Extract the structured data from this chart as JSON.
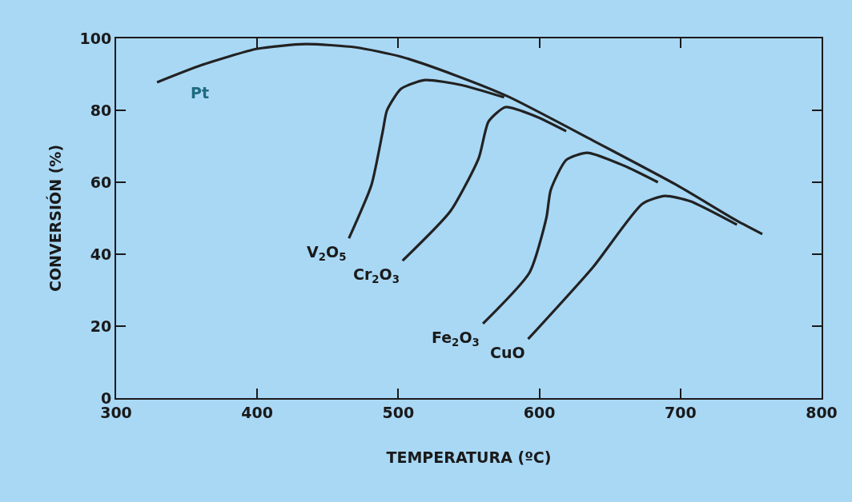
{
  "chart_data": {
    "type": "line",
    "xlabel": "TEMPERATURA (ºC)",
    "ylabel": "CONVERSIÓN (%)",
    "xlim": [
      300,
      800
    ],
    "xticks": [
      300,
      400,
      500,
      600,
      700,
      800
    ],
    "ylim": [
      0,
      100
    ],
    "yticks": [
      0,
      20,
      40,
      60,
      80,
      100
    ],
    "grid": false,
    "legend": false,
    "marker": "none",
    "line_style": "solid",
    "series": [
      {
        "name": "Pt",
        "color": "#222222",
        "x": [
          329,
          360,
          400,
          434,
          470,
          502,
          540,
          578,
          638,
          697,
          740,
          758
        ],
        "values": [
          87.8,
          92.5,
          97.1,
          98.4,
          97.5,
          94.9,
          89.8,
          83.8,
          71.6,
          59.3,
          49.3,
          45.6
        ]
      },
      {
        "name": "V$_{2}$O$_{5}$",
        "color": "#222222",
        "x": [
          465,
          481,
          489,
          492,
          502,
          519,
          545,
          575
        ],
        "values": [
          44.4,
          59.3,
          74.2,
          80,
          86,
          88.4,
          87,
          83.6
        ]
      },
      {
        "name": "Cr$_{2}$O$_{3}$",
        "color": "#222222",
        "x": [
          503,
          537,
          557,
          564,
          576,
          597,
          619
        ],
        "values": [
          38.2,
          52,
          66.7,
          76.9,
          80.9,
          78.4,
          74.2
        ]
      },
      {
        "name": "Fe$_{2}$O$_{3}$",
        "color": "#222222",
        "x": [
          560,
          593,
          605,
          608,
          619,
          634,
          660,
          684
        ],
        "values": [
          20.7,
          34.9,
          50.2,
          57.8,
          66.2,
          68.2,
          64.6,
          60
        ]
      },
      {
        "name": "CuO",
        "color": "#222222",
        "x": [
          592,
          638,
          673,
          689,
          707,
          740
        ],
        "values": [
          16.4,
          36.4,
          54,
          56.2,
          54.7,
          48.2
        ]
      }
    ]
  }
}
